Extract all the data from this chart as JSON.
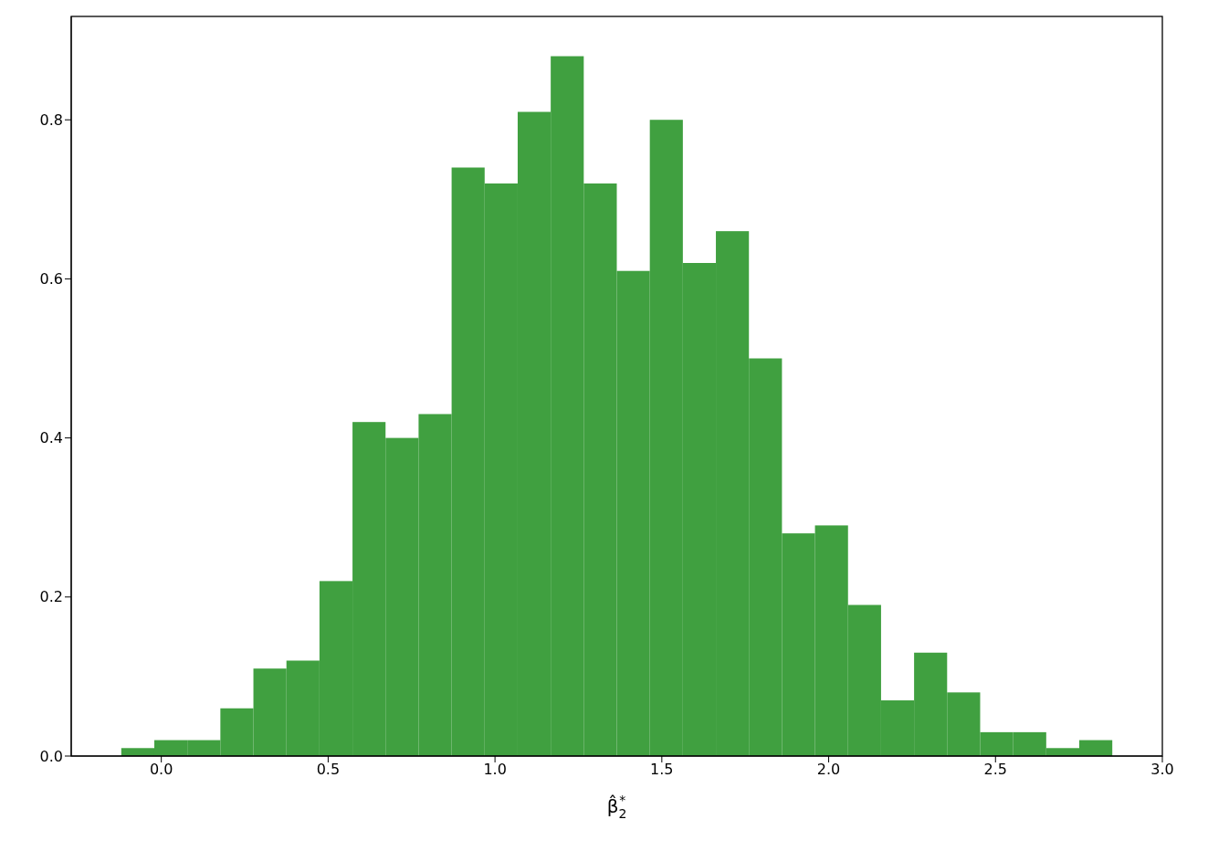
{
  "chart_data": {
    "type": "histogram",
    "xlabel": "β̂$_{2}$$^{*}$",
    "color": "#40a040",
    "bins": [
      -0.12,
      -0.021,
      0.078,
      0.177,
      0.276,
      0.375,
      0.474,
      0.573,
      0.672,
      0.771,
      0.87,
      0.969,
      1.068,
      1.167,
      1.266,
      1.365,
      1.464,
      1.563,
      1.662,
      1.761,
      1.86,
      1.959,
      2.058,
      2.157,
      2.256,
      2.355,
      2.454,
      2.553,
      2.652,
      2.751,
      2.85
    ],
    "values": [
      0.01,
      0.02,
      0.02,
      0.06,
      0.11,
      0.12,
      0.22,
      0.42,
      0.4,
      0.43,
      0.74,
      0.72,
      0.81,
      0.88,
      0.72,
      0.61,
      0.8,
      0.62,
      0.66,
      0.5,
      0.28,
      0.29,
      0.19,
      0.07,
      0.13,
      0.08,
      0.03,
      0.03,
      0.01,
      0.02
    ],
    "xlim": [
      -0.27,
      3.0
    ],
    "xticks": [
      {
        "value": 0,
        "label": "0.0"
      },
      {
        "value": 0.5,
        "label": "0.5"
      },
      {
        "value": 1,
        "label": "1.0"
      },
      {
        "value": 1.5,
        "label": "1.5"
      },
      {
        "value": 2,
        "label": "2.0"
      },
      {
        "value": 2.5,
        "label": "2.5"
      },
      {
        "value": 3,
        "label": "3.0"
      }
    ],
    "ylim": [
      0,
      0.93
    ],
    "yticks": [
      {
        "value": 0,
        "label": "0.0"
      },
      {
        "value": 0.2,
        "label": "0.2"
      },
      {
        "value": 0.4,
        "label": "0.4"
      },
      {
        "value": 0.6,
        "label": "0.6"
      },
      {
        "value": 0.8,
        "label": "0.8"
      }
    ],
    "grid": false
  }
}
